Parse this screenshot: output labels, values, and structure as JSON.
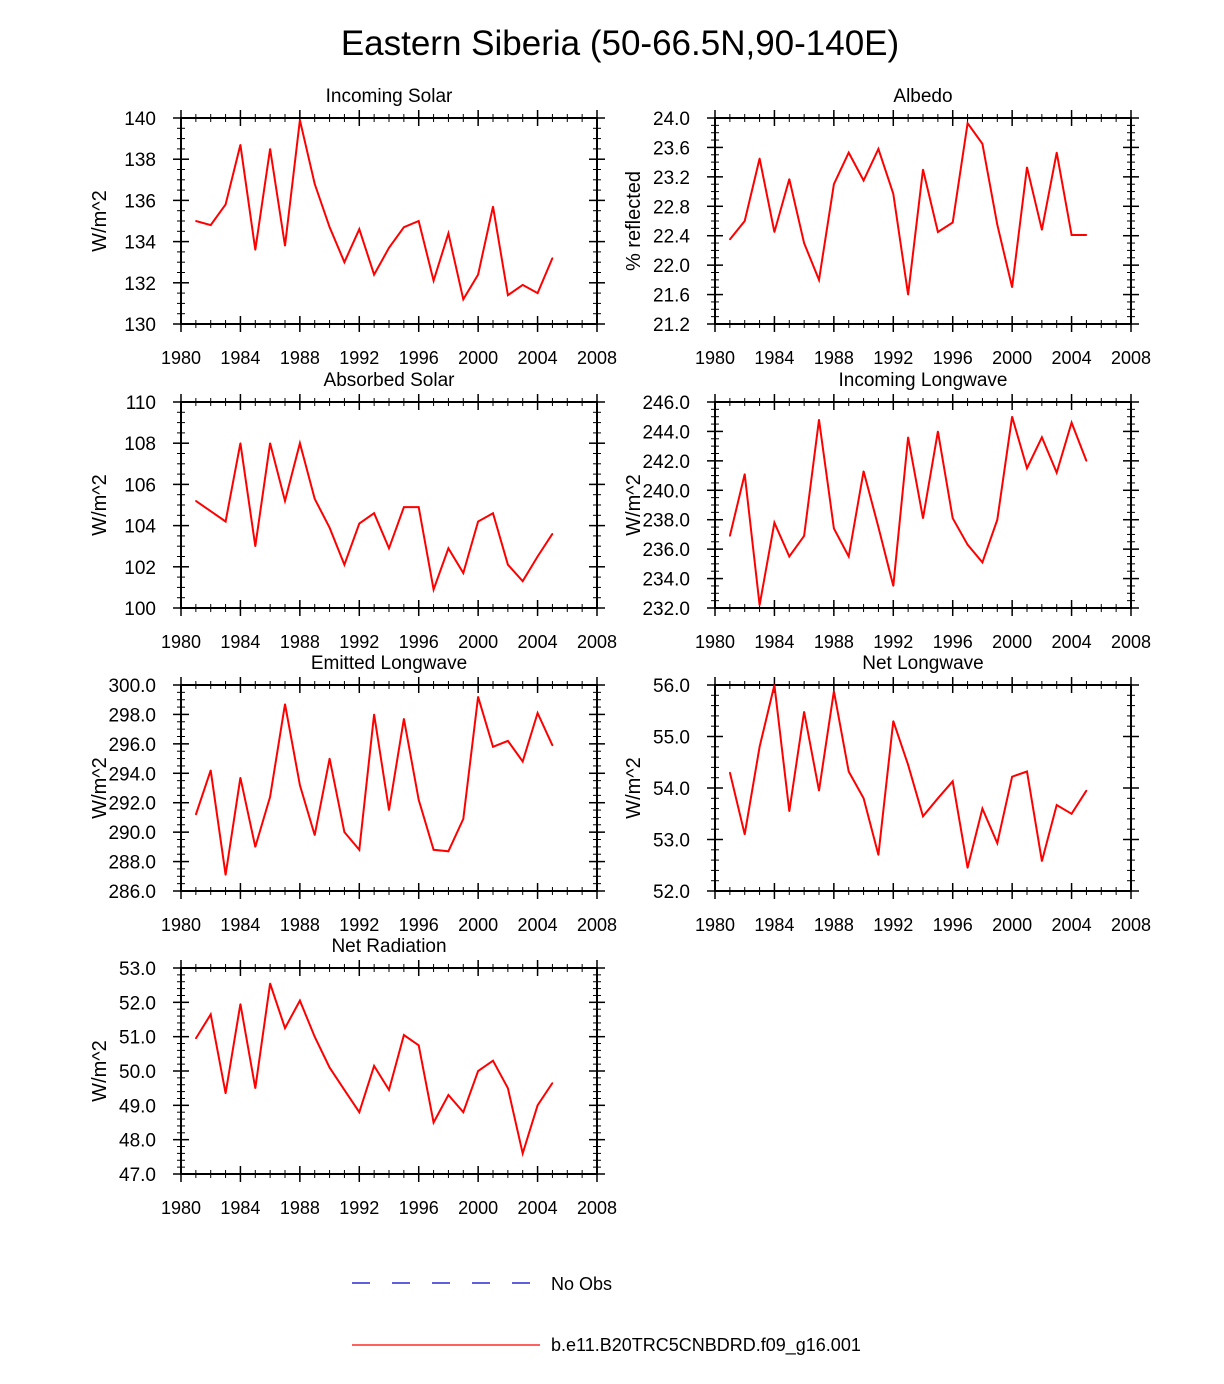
{
  "page_title": "Eastern Siberia (50-66.5N,90-140E)",
  "colors": {
    "series": "#ff0000",
    "no_obs": "#0000cc",
    "axis": "#000000"
  },
  "legend": [
    {
      "label": "No Obs",
      "style": "dashed",
      "color": "#0000cc"
    },
    {
      "label": "b.e11.B20TRC5CNBDRD.f09_g16.001",
      "style": "solid",
      "color": "#ff0000"
    }
  ],
  "chart_data": [
    {
      "type": "line",
      "title": "Incoming Solar",
      "ylabel": "W/m^2",
      "xlabel": "",
      "xlim": [
        1980,
        2008
      ],
      "xticks": [
        1980,
        1984,
        1988,
        1992,
        1996,
        2000,
        2004,
        2008
      ],
      "ylim": [
        130,
        140
      ],
      "yticks": [
        130,
        132,
        134,
        136,
        138,
        140
      ],
      "ytick_decimals": 0,
      "yminor_step": 0.5,
      "series": [
        {
          "name": "b.e11.B20TRC5CNBDRD.f09_g16.001",
          "x": [
            1981,
            1982,
            1983,
            1984,
            1985,
            1986,
            1987,
            1988,
            1989,
            1990,
            1991,
            1992,
            1993,
            1994,
            1995,
            1996,
            1997,
            1998,
            1999,
            2000,
            2001,
            2002,
            2003,
            2004,
            2005
          ],
          "values": [
            135.0,
            134.8,
            135.8,
            138.7,
            133.6,
            138.5,
            133.8,
            139.9,
            136.8,
            134.7,
            133.0,
            134.6,
            132.4,
            133.7,
            134.7,
            135.0,
            132.1,
            134.4,
            131.2,
            132.4,
            135.7,
            131.4,
            131.9,
            131.5,
            133.2
          ]
        }
      ]
    },
    {
      "type": "line",
      "title": "Albedo",
      "ylabel": "% reflected",
      "xlabel": "",
      "xlim": [
        1980,
        2008
      ],
      "xticks": [
        1980,
        1984,
        1988,
        1992,
        1996,
        2000,
        2004,
        2008
      ],
      "ylim": [
        21.2,
        24.0
      ],
      "yticks": [
        21.2,
        21.6,
        22.0,
        22.4,
        22.8,
        23.2,
        23.6,
        24.0
      ],
      "ytick_decimals": 1,
      "yminor_step": 0.1,
      "series": [
        {
          "name": "b.e11.B20TRC5CNBDRD.f09_g16.001",
          "x": [
            1981,
            1982,
            1983,
            1984,
            1985,
            1986,
            1987,
            1988,
            1989,
            1990,
            1991,
            1992,
            1993,
            1994,
            1995,
            1996,
            1997,
            1998,
            1999,
            2000,
            2001,
            2002,
            2003,
            2004,
            2005
          ],
          "values": [
            22.35,
            22.6,
            23.45,
            22.45,
            23.17,
            22.3,
            21.8,
            23.1,
            23.53,
            23.15,
            23.58,
            22.97,
            21.6,
            23.3,
            22.45,
            22.58,
            23.93,
            23.65,
            22.55,
            21.7,
            23.33,
            22.48,
            23.53,
            22.41,
            22.41
          ]
        }
      ]
    },
    {
      "type": "line",
      "title": "Absorbed Solar",
      "ylabel": "W/m^2",
      "xlabel": "",
      "xlim": [
        1980,
        2008
      ],
      "xticks": [
        1980,
        1984,
        1988,
        1992,
        1996,
        2000,
        2004,
        2008
      ],
      "ylim": [
        100,
        110
      ],
      "yticks": [
        100,
        102,
        104,
        106,
        108,
        110
      ],
      "ytick_decimals": 0,
      "yminor_step": 0.5,
      "series": [
        {
          "name": "b.e11.B20TRC5CNBDRD.f09_g16.001",
          "x": [
            1981,
            1982,
            1983,
            1984,
            1985,
            1986,
            1987,
            1988,
            1989,
            1990,
            1991,
            1992,
            1993,
            1994,
            1995,
            1996,
            1997,
            1998,
            1999,
            2000,
            2001,
            2002,
            2003,
            2004,
            2005
          ],
          "values": [
            105.2,
            104.7,
            104.2,
            108.0,
            103.0,
            108.0,
            105.2,
            108.0,
            105.3,
            103.9,
            102.1,
            104.1,
            104.6,
            102.9,
            104.9,
            104.9,
            100.9,
            102.9,
            101.7,
            104.2,
            104.6,
            102.1,
            101.3,
            102.5,
            103.6
          ]
        }
      ]
    },
    {
      "type": "line",
      "title": "Incoming Longwave",
      "ylabel": "W/m^2",
      "xlabel": "",
      "xlim": [
        1980,
        2008
      ],
      "xticks": [
        1980,
        1984,
        1988,
        1992,
        1996,
        2000,
        2004,
        2008
      ],
      "ylim": [
        232.0,
        246.0
      ],
      "yticks": [
        232,
        234,
        236,
        238,
        240,
        242,
        244,
        246
      ],
      "ytick_decimals": 1,
      "yminor_step": 0.5,
      "series": [
        {
          "name": "b.e11.B20TRC5CNBDRD.f09_g16.001",
          "x": [
            1981,
            1982,
            1983,
            1984,
            1985,
            1986,
            1987,
            1988,
            1989,
            1990,
            1991,
            1992,
            1993,
            1994,
            1995,
            1996,
            1997,
            1998,
            1999,
            2000,
            2001,
            2002,
            2003,
            2004,
            2005
          ],
          "values": [
            236.9,
            241.1,
            232.2,
            237.8,
            235.5,
            236.9,
            244.8,
            237.4,
            235.5,
            241.3,
            237.5,
            233.5,
            243.6,
            238.1,
            244.0,
            238.1,
            236.3,
            235.1,
            238.0,
            245.0,
            241.5,
            243.6,
            241.2,
            244.6,
            242.0
          ]
        }
      ]
    },
    {
      "type": "line",
      "title": "Emitted Longwave",
      "ylabel": "W/m^2",
      "xlabel": "",
      "xlim": [
        1980,
        2008
      ],
      "xticks": [
        1980,
        1984,
        1988,
        1992,
        1996,
        2000,
        2004,
        2008
      ],
      "ylim": [
        286.0,
        300.0
      ],
      "yticks": [
        286,
        288,
        290,
        292,
        294,
        296,
        298,
        300
      ],
      "ytick_decimals": 1,
      "yminor_step": 0.5,
      "series": [
        {
          "name": "b.e11.B20TRC5CNBDRD.f09_g16.001",
          "x": [
            1981,
            1982,
            1983,
            1984,
            1985,
            1986,
            1987,
            1988,
            1989,
            1990,
            1991,
            1992,
            1993,
            1994,
            1995,
            1996,
            1997,
            1998,
            1999,
            2000,
            2001,
            2002,
            2003,
            2004,
            2005
          ],
          "values": [
            291.2,
            294.2,
            287.1,
            293.7,
            289.0,
            292.4,
            298.7,
            293.2,
            289.8,
            295.0,
            290.0,
            288.8,
            298.0,
            291.5,
            297.7,
            292.2,
            288.8,
            288.7,
            290.9,
            299.2,
            295.8,
            296.2,
            294.8,
            298.1,
            295.9
          ]
        }
      ]
    },
    {
      "type": "line",
      "title": "Net Longwave",
      "ylabel": "W/m^2",
      "xlabel": "",
      "xlim": [
        1980,
        2008
      ],
      "xticks": [
        1980,
        1984,
        1988,
        1992,
        1996,
        2000,
        2004,
        2008
      ],
      "ylim": [
        52.0,
        56.0
      ],
      "yticks": [
        52,
        53,
        54,
        55,
        56
      ],
      "ytick_decimals": 1,
      "yminor_step": 0.2,
      "series": [
        {
          "name": "b.e11.B20TRC5CNBDRD.f09_g16.001",
          "x": [
            1981,
            1982,
            1983,
            1984,
            1985,
            1986,
            1987,
            1988,
            1989,
            1990,
            1991,
            1992,
            1993,
            1994,
            1995,
            1996,
            1997,
            1998,
            1999,
            2000,
            2001,
            2002,
            2003,
            2004,
            2005
          ],
          "values": [
            54.3,
            53.1,
            54.8,
            56.0,
            53.55,
            55.48,
            53.95,
            55.88,
            54.32,
            53.8,
            52.7,
            55.3,
            54.45,
            53.45,
            53.8,
            54.13,
            52.45,
            53.6,
            52.93,
            54.22,
            54.32,
            52.58,
            53.67,
            53.5,
            53.95
          ]
        }
      ]
    },
    {
      "type": "line",
      "title": "Net Radiation",
      "ylabel": "W/m^2",
      "xlabel": "",
      "xlim": [
        1980,
        2008
      ],
      "xticks": [
        1980,
        1984,
        1988,
        1992,
        1996,
        2000,
        2004,
        2008
      ],
      "ylim": [
        47.0,
        53.0
      ],
      "yticks": [
        47,
        48,
        49,
        50,
        51,
        52,
        53
      ],
      "ytick_decimals": 1,
      "yminor_step": 0.2,
      "series": [
        {
          "name": "b.e11.B20TRC5CNBDRD.f09_g16.001",
          "x": [
            1981,
            1982,
            1983,
            1984,
            1985,
            1986,
            1987,
            1988,
            1989,
            1990,
            1991,
            1992,
            1993,
            1994,
            1995,
            1996,
            1997,
            1998,
            1999,
            2000,
            2001,
            2002,
            2003,
            2004,
            2005
          ],
          "values": [
            50.95,
            51.65,
            49.35,
            51.95,
            49.5,
            52.55,
            51.25,
            52.05,
            51.0,
            50.1,
            49.45,
            48.8,
            50.15,
            49.45,
            51.05,
            50.75,
            48.5,
            49.3,
            48.8,
            50.0,
            50.3,
            49.5,
            47.6,
            49.0,
            49.65
          ]
        }
      ]
    }
  ]
}
